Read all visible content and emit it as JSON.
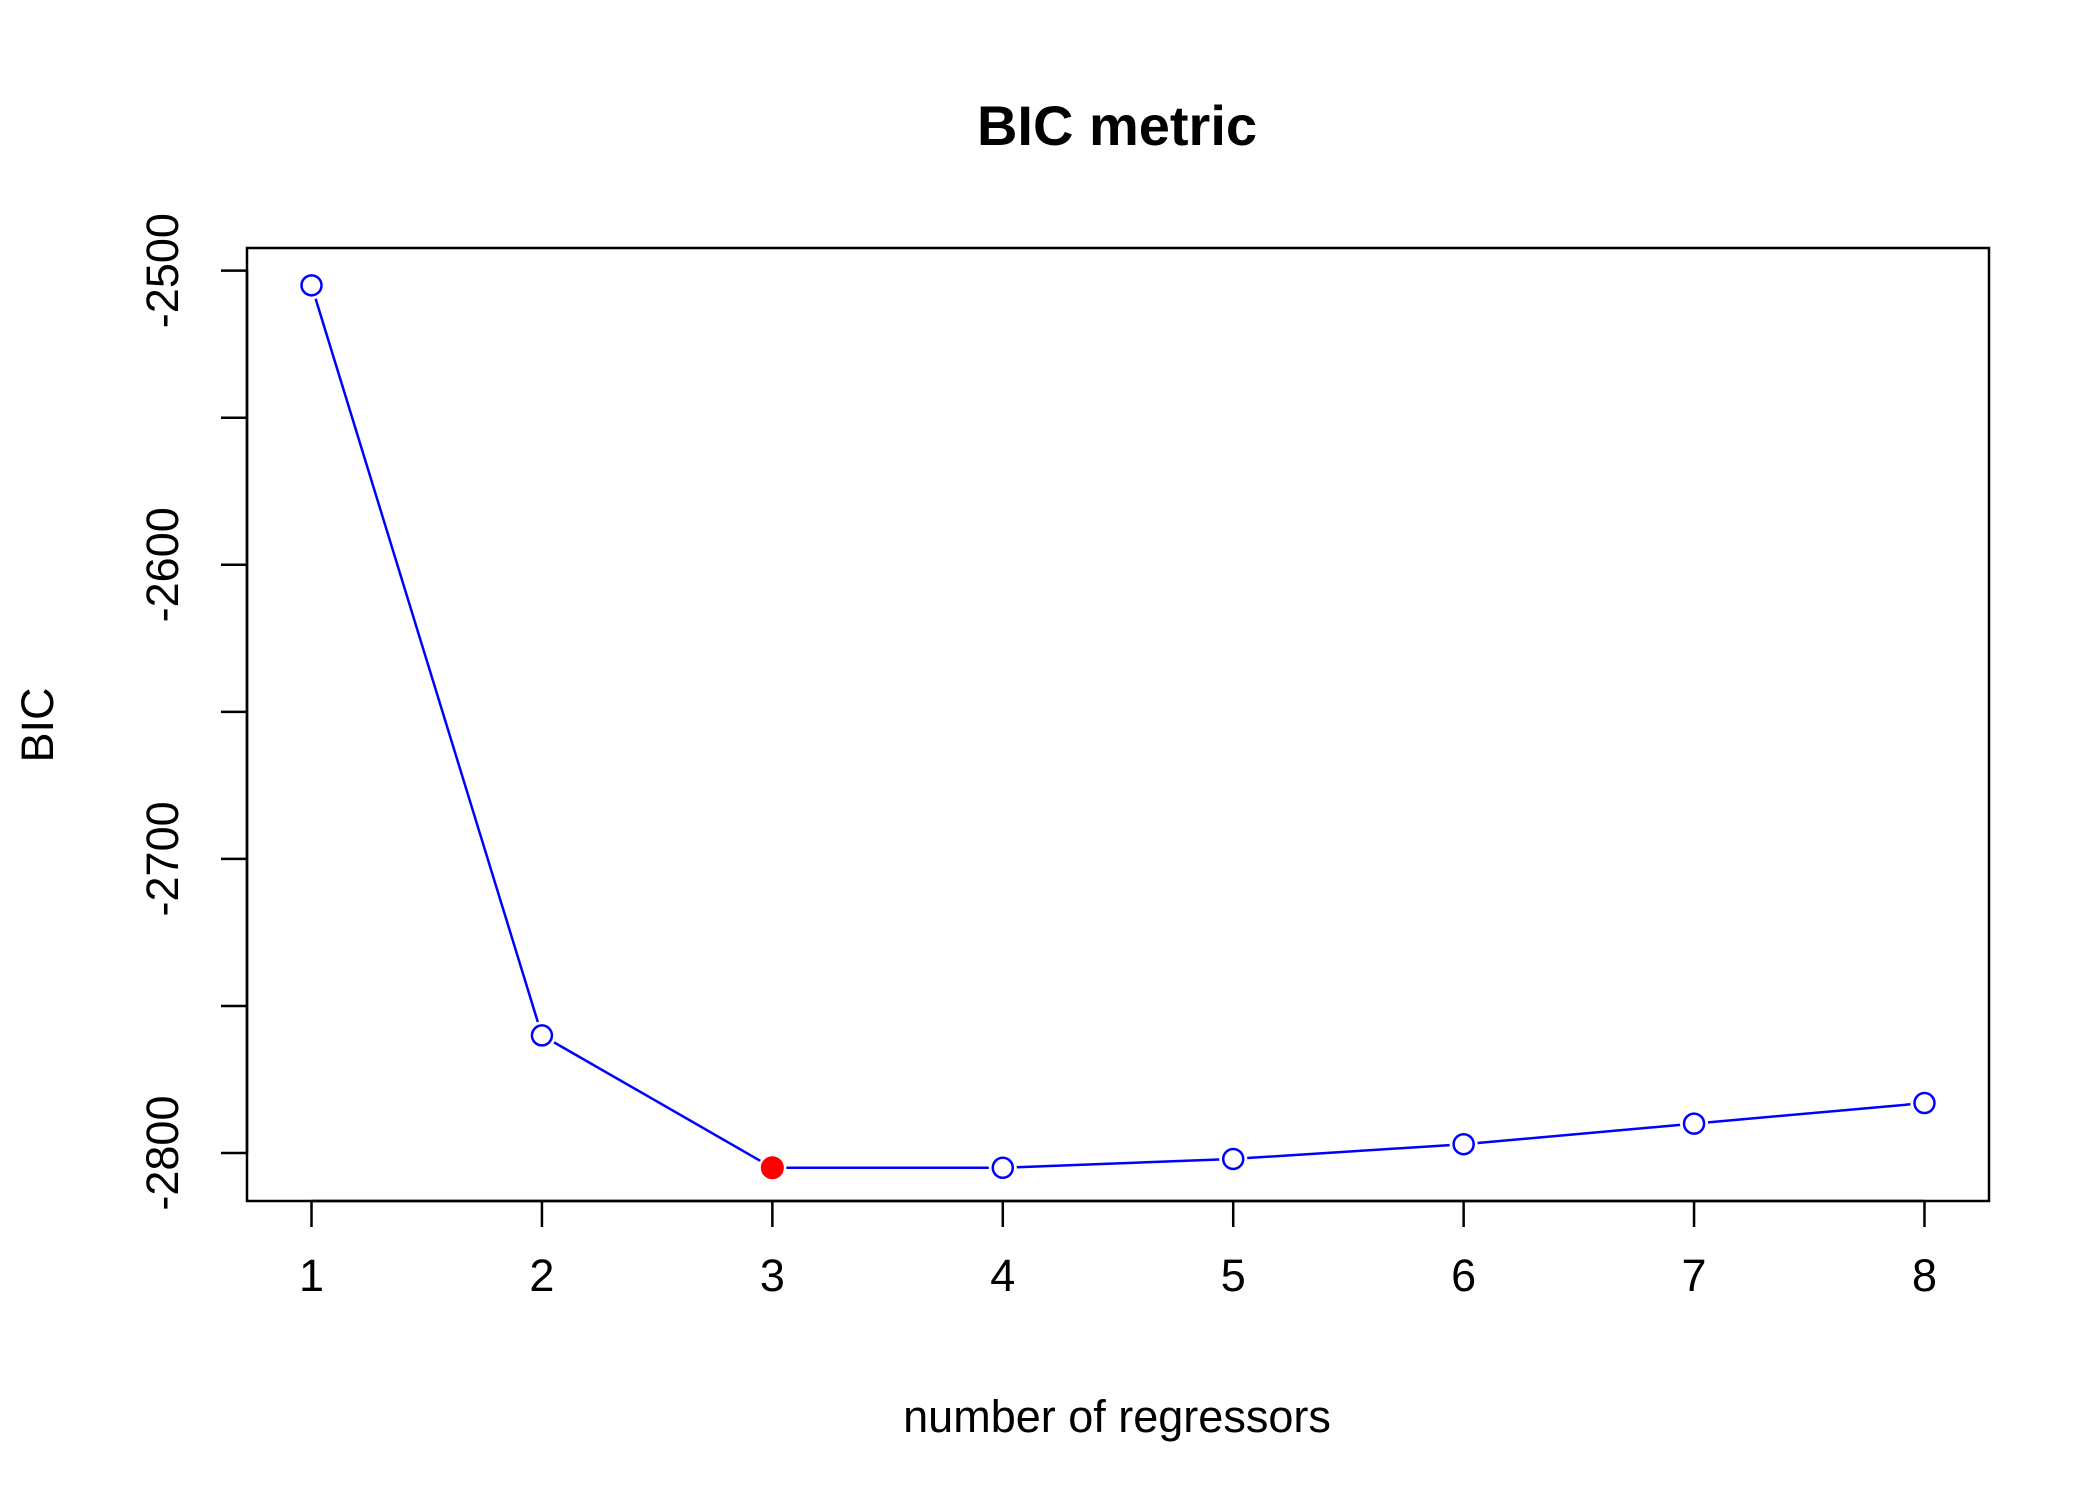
{
  "chart_data": {
    "type": "line",
    "title": "BIC metric",
    "xlabel": "number of regressors",
    "ylabel": "BIC",
    "x": [
      1,
      2,
      3,
      4,
      5,
      6,
      7,
      8
    ],
    "series": [
      {
        "values": [
          -2505,
          -2760,
          -2805,
          -2805,
          -2802,
          -2797,
          -2790,
          -2783
        ],
        "color": "#0000FF",
        "marker": "open-circle"
      }
    ],
    "highlight": {
      "x": 3,
      "y": -2805,
      "color": "#FF0000",
      "marker": "filled-circle"
    },
    "xticks": [
      "1",
      "2",
      "3",
      "4",
      "5",
      "6",
      "7",
      "8"
    ],
    "yticks": [
      {
        "value": -2500,
        "label": "-2500"
      },
      {
        "value": -2550,
        "label": ""
      },
      {
        "value": -2600,
        "label": "-2600"
      },
      {
        "value": -2650,
        "label": ""
      },
      {
        "value": -2700,
        "label": "-2700"
      },
      {
        "value": -2750,
        "label": ""
      },
      {
        "value": -2800,
        "label": "-2800"
      }
    ],
    "xlim": [
      0.72,
      8.28
    ],
    "ylim": [
      -2816.3,
      -2492.3
    ],
    "grid": false,
    "legend": "none"
  }
}
